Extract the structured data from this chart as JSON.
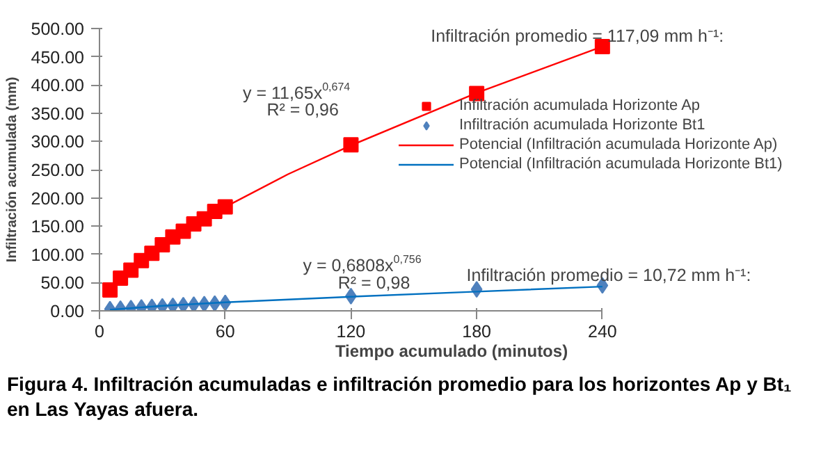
{
  "chart_data": {
    "type": "scatter",
    "xlabel": "Tiempo acumulado (minutos)",
    "ylabel": "Infiltración acumulada (mm)",
    "xlim": [
      0,
      240
    ],
    "ylim": [
      0,
      500
    ],
    "xticks": [
      0,
      60,
      120,
      180,
      240
    ],
    "yticks": [
      {
        "value": 0,
        "label": "0.00"
      },
      {
        "value": 50,
        "label": "50.00"
      },
      {
        "value": 100,
        "label": "100.00"
      },
      {
        "value": 150,
        "label": "150.00"
      },
      {
        "value": 200,
        "label": "200.00"
      },
      {
        "value": 250,
        "label": "250.00"
      },
      {
        "value": 300,
        "label": "300.00"
      },
      {
        "value": 350,
        "label": "350.00"
      },
      {
        "value": 400,
        "label": "400.00"
      },
      {
        "value": 450,
        "label": "450.00"
      },
      {
        "value": 500,
        "label": "500.00"
      }
    ],
    "grid": false,
    "legend": "right",
    "series": [
      {
        "name": "Infiltración acumulada Horizonte Ap",
        "marker": "square",
        "color": "#ff0000",
        "x": [
          5,
          10,
          15,
          20,
          25,
          30,
          35,
          40,
          45,
          50,
          55,
          60,
          120,
          180,
          240
        ],
        "values": [
          37,
          58,
          72,
          89,
          102,
          117,
          131,
          141,
          154,
          163,
          176,
          184,
          294,
          385,
          468
        ]
      },
      {
        "name": "Infiltración acumulada Horizonte Bt1",
        "marker": "diamond",
        "color": "#4f81bd",
        "x": [
          5,
          10,
          15,
          20,
          25,
          30,
          35,
          40,
          45,
          50,
          55,
          60,
          120,
          180,
          240
        ],
        "values": [
          3,
          4,
          5,
          6,
          7,
          8,
          9,
          10,
          11,
          12,
          13,
          14,
          26,
          38,
          45
        ]
      },
      {
        "name": "Potencial (Infiltración acumulada Horizonte Ap)",
        "type": "line",
        "line_style": "solid",
        "color": "#ff0000",
        "x": [
          5,
          15,
          30,
          60,
          90,
          120,
          180,
          240
        ],
        "values": [
          35,
          72,
          115,
          184,
          242,
          293,
          386,
          468
        ]
      },
      {
        "name": "Potencial (Infiltración acumulada Horizonte Bt1)",
        "type": "line",
        "line_style": "solid",
        "color": "#0070c0",
        "x": [
          5,
          30,
          60,
          120,
          180,
          240
        ],
        "values": [
          2,
          9,
          15,
          25,
          34,
          43
        ]
      }
    ],
    "annotations": [
      "y = 11,65x$^{0,674}$",
      "R² = 0,96",
      "Infiltración promedio = 117,09 mm h⁻¹:",
      "y = 0,6808x$^{0,756}$",
      "R² = 0,98",
      "Infiltración promedio = 10,72 mm h⁻¹:",
      "Figura 4. Infiltración acumuladas e infiltración promedio para los horizontes Ap y Bt₁ en Las Yayas afuera."
    ]
  }
}
